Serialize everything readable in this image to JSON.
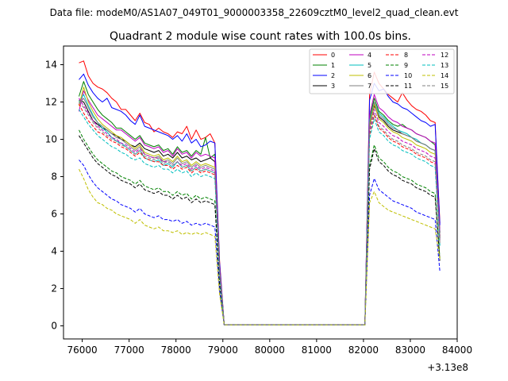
{
  "figure": {
    "suptitle": "Data file: modeM0/AS1A07_049T01_9000003358_22609cztM0_level2_quad_clean.evt"
  },
  "chart_data": {
    "type": "line",
    "title": "Quadrant 2 module wise count rates with 100.0s bins.",
    "xlabel": "",
    "ylabel": "",
    "x_offset_label": "+3.13e8",
    "xlim": [
      75600,
      84000
    ],
    "ylim": [
      -0.7,
      15.0
    ],
    "x_ticks": [
      76000,
      77000,
      78000,
      79000,
      80000,
      81000,
      82000,
      83000,
      84000
    ],
    "x_tick_labels": [
      "76000",
      "77000",
      "78000",
      "79000",
      "80000",
      "81000",
      "82000",
      "83000",
      "84000"
    ],
    "y_ticks": [
      0,
      2,
      4,
      6,
      8,
      10,
      12,
      14
    ],
    "y_tick_labels": [
      "0",
      "2",
      "4",
      "6",
      "8",
      "10",
      "12",
      "14"
    ],
    "legend_position": "top-right",
    "x": [
      75930,
      76030,
      76130,
      76230,
      76330,
      76430,
      76530,
      76630,
      76730,
      76830,
      76930,
      77030,
      77130,
      77230,
      77330,
      77430,
      77530,
      77630,
      77730,
      77830,
      77930,
      78030,
      78130,
      78230,
      78330,
      78430,
      78530,
      78630,
      78730,
      78830,
      78930,
      79030,
      82030,
      82130,
      82230,
      82330,
      82430,
      82530,
      82630,
      82730,
      82830,
      82930,
      83030,
      83130,
      83230,
      83330,
      83430,
      83530,
      83630
    ],
    "series": [
      {
        "name": "0",
        "color": "#ff0000",
        "dash": "solid",
        "values": [
          14.1,
          14.2,
          13.4,
          13.0,
          12.8,
          12.7,
          12.5,
          12.2,
          12.0,
          11.6,
          11.6,
          11.3,
          11.0,
          11.4,
          10.9,
          10.8,
          10.4,
          10.6,
          10.4,
          10.3,
          10.1,
          10.4,
          10.3,
          10.7,
          10.0,
          10.5,
          10.0,
          10.1,
          10.3,
          9.8,
          3.5,
          0.05,
          0.05,
          12.4,
          13.6,
          13.0,
          12.7,
          12.4,
          12.2,
          12.0,
          12.5,
          12.1,
          11.8,
          11.6,
          11.5,
          11.3,
          11.0,
          10.9,
          5.5
        ]
      },
      {
        "name": "1",
        "color": "#008000",
        "dash": "solid",
        "values": [
          12.3,
          13.1,
          12.4,
          12.0,
          11.6,
          11.3,
          11.1,
          10.9,
          10.6,
          10.6,
          10.4,
          10.2,
          10.0,
          10.2,
          9.8,
          9.7,
          9.6,
          9.7,
          9.4,
          9.5,
          9.2,
          9.6,
          9.3,
          9.4,
          9.1,
          9.4,
          9.2,
          10.1,
          9.0,
          9.2,
          3.2,
          0.05,
          0.05,
          11.1,
          12.2,
          11.5,
          11.3,
          11.0,
          10.8,
          10.7,
          10.8,
          10.6,
          10.5,
          10.3,
          10.2,
          10.1,
          9.9,
          9.7,
          5.0
        ]
      },
      {
        "name": "2",
        "color": "#0000ff",
        "dash": "solid",
        "values": [
          13.2,
          13.5,
          12.9,
          12.5,
          12.2,
          12.0,
          12.2,
          11.7,
          11.6,
          11.5,
          11.3,
          11.0,
          10.8,
          11.3,
          10.7,
          10.6,
          10.5,
          10.4,
          10.3,
          10.2,
          10.0,
          10.2,
          9.9,
          10.3,
          9.8,
          10.0,
          9.6,
          9.7,
          9.9,
          9.8,
          3.4,
          0.05,
          0.05,
          12.1,
          13.0,
          12.6,
          12.7,
          12.3,
          12.0,
          11.9,
          11.7,
          11.6,
          11.4,
          11.2,
          11.0,
          10.9,
          10.7,
          10.8,
          5.4
        ]
      },
      {
        "name": "3",
        "color": "#000000",
        "dash": "solid",
        "values": [
          12.1,
          12.0,
          11.5,
          11.0,
          10.8,
          10.6,
          10.5,
          10.3,
          10.2,
          10.0,
          9.9,
          9.7,
          9.6,
          9.8,
          9.5,
          9.4,
          9.3,
          9.4,
          9.1,
          9.2,
          9.0,
          9.3,
          9.0,
          9.1,
          8.9,
          9.0,
          8.8,
          8.9,
          9.0,
          8.8,
          3.0,
          0.05,
          0.05,
          10.7,
          11.8,
          11.2,
          11.0,
          10.7,
          10.5,
          10.4,
          10.3,
          10.2,
          10.1,
          9.9,
          9.8,
          9.7,
          9.5,
          9.4,
          4.8
        ]
      },
      {
        "name": "4",
        "color": "#bf00bf",
        "dash": "solid",
        "values": [
          11.5,
          12.6,
          12.1,
          11.7,
          11.3,
          11.1,
          10.9,
          10.7,
          10.5,
          10.5,
          10.3,
          10.1,
          9.9,
          10.1,
          9.7,
          9.6,
          9.5,
          9.6,
          9.3,
          9.4,
          9.1,
          9.5,
          9.2,
          9.3,
          9.0,
          9.3,
          9.1,
          9.2,
          9.1,
          9.0,
          3.1,
          0.05,
          0.05,
          11.3,
          12.4,
          11.7,
          11.5,
          11.2,
          11.0,
          10.9,
          10.7,
          10.6,
          10.5,
          10.3,
          10.2,
          10.1,
          9.9,
          9.8,
          5.0
        ]
      },
      {
        "name": "5",
        "color": "#00bfbf",
        "dash": "solid",
        "values": [
          12.0,
          12.4,
          11.8,
          11.3,
          10.9,
          10.6,
          10.4,
          10.1,
          9.9,
          9.8,
          9.6,
          9.4,
          9.2,
          9.4,
          9.0,
          8.9,
          8.8,
          8.9,
          8.6,
          8.7,
          8.5,
          8.8,
          8.5,
          8.6,
          8.3,
          8.5,
          8.3,
          8.4,
          8.3,
          8.2,
          2.9,
          0.05,
          0.05,
          11.0,
          12.0,
          11.4,
          11.2,
          10.9,
          10.7,
          10.5,
          10.4,
          10.3,
          10.1,
          10.0,
          9.8,
          9.7,
          9.5,
          9.4,
          4.7
        ]
      },
      {
        "name": "6",
        "color": "#bfbf00",
        "dash": "solid",
        "values": [
          11.8,
          12.8,
          12.0,
          11.5,
          11.1,
          10.8,
          10.6,
          10.4,
          10.2,
          10.1,
          9.9,
          9.7,
          9.5,
          9.7,
          9.3,
          9.2,
          9.1,
          9.2,
          8.9,
          9.0,
          8.8,
          9.1,
          8.8,
          8.9,
          8.6,
          8.8,
          8.6,
          8.7,
          8.6,
          8.5,
          3.0,
          0.05,
          0.05,
          10.6,
          11.9,
          11.1,
          10.9,
          10.6,
          10.4,
          10.3,
          10.1,
          10.0,
          9.9,
          9.7,
          9.6,
          9.5,
          9.3,
          9.2,
          4.6
        ]
      },
      {
        "name": "7",
        "color": "#808080",
        "dash": "solid",
        "values": [
          11.9,
          12.2,
          11.7,
          11.2,
          10.9,
          10.7,
          10.5,
          10.3,
          10.1,
          10.0,
          9.8,
          9.6,
          9.4,
          9.6,
          9.2,
          9.1,
          9.0,
          9.1,
          8.8,
          8.9,
          8.7,
          9.0,
          8.7,
          8.8,
          8.5,
          8.7,
          8.5,
          8.6,
          8.5,
          8.4,
          2.9,
          0.05,
          0.05,
          10.9,
          12.0,
          11.3,
          11.1,
          10.8,
          10.6,
          10.5,
          10.3,
          10.2,
          10.1,
          9.9,
          9.8,
          9.7,
          9.5,
          9.4,
          4.7
        ]
      },
      {
        "name": "8",
        "color": "#ff0000",
        "dash": "dashed",
        "values": [
          11.9,
          11.4,
          11.0,
          10.7,
          10.4,
          10.3,
          10.1,
          9.9,
          9.8,
          9.6,
          9.5,
          9.3,
          9.1,
          9.3,
          9.0,
          8.9,
          8.8,
          8.8,
          8.6,
          8.6,
          8.4,
          8.6,
          8.4,
          8.5,
          8.2,
          8.4,
          8.2,
          8.3,
          8.2,
          8.1,
          2.8,
          0.05,
          0.05,
          10.2,
          11.3,
          10.6,
          10.4,
          10.1,
          9.9,
          9.8,
          9.6,
          9.5,
          9.4,
          9.2,
          9.1,
          9.0,
          8.8,
          8.7,
          4.4
        ]
      },
      {
        "name": "9",
        "color": "#008000",
        "dash": "dashed",
        "values": [
          10.5,
          10.0,
          9.6,
          9.2,
          8.9,
          8.7,
          8.5,
          8.3,
          8.2,
          8.0,
          7.9,
          7.8,
          7.6,
          7.8,
          7.5,
          7.4,
          7.3,
          7.4,
          7.2,
          7.2,
          7.0,
          7.2,
          7.0,
          7.1,
          6.8,
          7.0,
          6.8,
          6.9,
          6.8,
          6.7,
          2.3,
          0.05,
          0.05,
          8.6,
          9.7,
          9.0,
          8.8,
          8.5,
          8.3,
          8.2,
          8.0,
          7.9,
          7.8,
          7.6,
          7.5,
          7.4,
          7.2,
          7.1,
          3.6
        ]
      },
      {
        "name": "10",
        "color": "#0000ff",
        "dash": "dashed",
        "values": [
          8.9,
          8.6,
          8.1,
          7.7,
          7.4,
          7.2,
          7.0,
          6.8,
          6.7,
          6.5,
          6.4,
          6.3,
          6.1,
          6.3,
          6.0,
          5.9,
          5.8,
          5.9,
          5.7,
          5.7,
          5.6,
          5.7,
          5.5,
          5.6,
          5.4,
          5.5,
          5.4,
          5.5,
          5.4,
          5.3,
          1.9,
          0.05,
          0.05,
          7.0,
          7.9,
          7.3,
          7.1,
          6.9,
          6.7,
          6.6,
          6.5,
          6.4,
          6.3,
          6.1,
          6.0,
          5.9,
          5.8,
          5.7,
          2.9
        ]
      },
      {
        "name": "11",
        "color": "#000000",
        "dash": "dashed",
        "values": [
          10.2,
          9.8,
          9.4,
          9.0,
          8.7,
          8.5,
          8.3,
          8.1,
          8.0,
          7.8,
          7.7,
          7.6,
          7.4,
          7.6,
          7.3,
          7.2,
          7.1,
          7.2,
          7.0,
          7.0,
          6.8,
          7.0,
          6.8,
          6.9,
          6.6,
          6.8,
          6.6,
          6.7,
          6.6,
          6.5,
          2.3,
          0.05,
          0.05,
          8.4,
          9.5,
          8.8,
          8.6,
          8.3,
          8.1,
          8.0,
          7.8,
          7.7,
          7.6,
          7.4,
          7.3,
          7.2,
          7.0,
          6.9,
          3.5
        ]
      },
      {
        "name": "12",
        "color": "#bf00bf",
        "dash": "dashed",
        "values": [
          12.2,
          11.8,
          11.4,
          11.0,
          10.7,
          10.5,
          10.3,
          10.1,
          10.0,
          9.8,
          9.7,
          9.5,
          9.3,
          9.5,
          9.2,
          9.1,
          9.0,
          9.0,
          8.8,
          8.8,
          8.6,
          8.8,
          8.6,
          8.7,
          8.4,
          8.6,
          8.4,
          8.5,
          8.4,
          8.3,
          2.9,
          0.05,
          0.05,
          10.5,
          11.6,
          10.9,
          10.7,
          10.4,
          10.2,
          10.1,
          9.9,
          9.8,
          9.7,
          9.5,
          9.4,
          9.3,
          9.1,
          9.0,
          4.5
        ]
      },
      {
        "name": "13",
        "color": "#00bfbf",
        "dash": "dashed",
        "values": [
          11.6,
          11.2,
          10.8,
          10.5,
          10.2,
          10.0,
          9.8,
          9.6,
          9.5,
          9.3,
          9.2,
          9.0,
          8.9,
          9.0,
          8.7,
          8.6,
          8.5,
          8.6,
          8.4,
          8.4,
          8.2,
          8.4,
          8.2,
          8.3,
          8.0,
          8.2,
          8.0,
          8.1,
          8.0,
          7.9,
          2.7,
          0.05,
          0.05,
          10.0,
          11.1,
          10.4,
          10.2,
          9.9,
          9.7,
          9.6,
          9.4,
          9.3,
          9.2,
          9.0,
          8.9,
          8.8,
          8.6,
          8.5,
          4.3
        ]
      },
      {
        "name": "14",
        "color": "#bfbf00",
        "dash": "dashed",
        "values": [
          8.4,
          7.9,
          7.3,
          6.9,
          6.6,
          6.5,
          6.3,
          6.2,
          6.0,
          5.9,
          5.8,
          5.7,
          5.5,
          5.7,
          5.4,
          5.3,
          5.2,
          5.3,
          5.1,
          5.1,
          5.0,
          5.1,
          4.9,
          5.0,
          4.9,
          5.0,
          4.9,
          5.0,
          4.9,
          4.8,
          1.7,
          0.05,
          0.05,
          6.6,
          7.2,
          6.6,
          6.4,
          6.2,
          6.1,
          6.0,
          5.9,
          5.8,
          5.7,
          5.6,
          5.5,
          5.4,
          5.3,
          5.2,
          3.6
        ]
      },
      {
        "name": "15",
        "color": "#808080",
        "dash": "dashed",
        "values": [
          12.0,
          11.7,
          11.3,
          10.9,
          10.6,
          10.4,
          10.2,
          10.0,
          9.9,
          9.7,
          9.6,
          9.4,
          9.2,
          9.4,
          9.1,
          9.0,
          8.9,
          9.0,
          8.7,
          8.8,
          8.6,
          8.8,
          8.5,
          8.6,
          8.3,
          8.5,
          8.3,
          8.4,
          8.3,
          8.2,
          2.8,
          0.05,
          0.05,
          10.3,
          11.4,
          10.7,
          10.5,
          10.2,
          10.0,
          9.9,
          9.7,
          9.6,
          9.5,
          9.3,
          9.2,
          9.1,
          8.9,
          8.8,
          4.4
        ]
      }
    ]
  }
}
